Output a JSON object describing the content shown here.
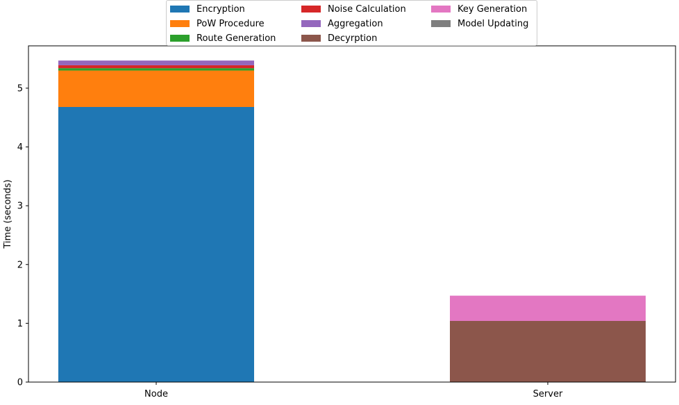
{
  "chart_data": {
    "type": "bar",
    "stacked": true,
    "categories": [
      "Node",
      "Server"
    ],
    "ylabel": "Time (seconds)",
    "ylim": [
      0,
      5.72
    ],
    "yticks": [
      "0",
      "1",
      "2",
      "3",
      "4",
      "5"
    ],
    "grid": false,
    "legend_position": "top-center",
    "series": [
      {
        "name": "Encryption",
        "color": "#1f77b4",
        "values": [
          4.68,
          0
        ]
      },
      {
        "name": "PoW Procedure",
        "color": "#ff7f0e",
        "values": [
          0.62,
          0
        ]
      },
      {
        "name": "Route Generation",
        "color": "#2ca02c",
        "values": [
          0.04,
          0
        ]
      },
      {
        "name": "Noise Calculation",
        "color": "#d62728",
        "values": [
          0.05,
          0
        ]
      },
      {
        "name": "Aggregation",
        "color": "#9467bd",
        "values": [
          0.08,
          0
        ]
      },
      {
        "name": "Decyrption",
        "color": "#8c564b",
        "values": [
          0,
          1.04
        ]
      },
      {
        "name": "Key Generation",
        "color": "#e377c2",
        "values": [
          0,
          0.43
        ]
      },
      {
        "name": "Model Updating",
        "color": "#7f7f7f",
        "values": [
          0,
          0.0
        ]
      }
    ]
  }
}
